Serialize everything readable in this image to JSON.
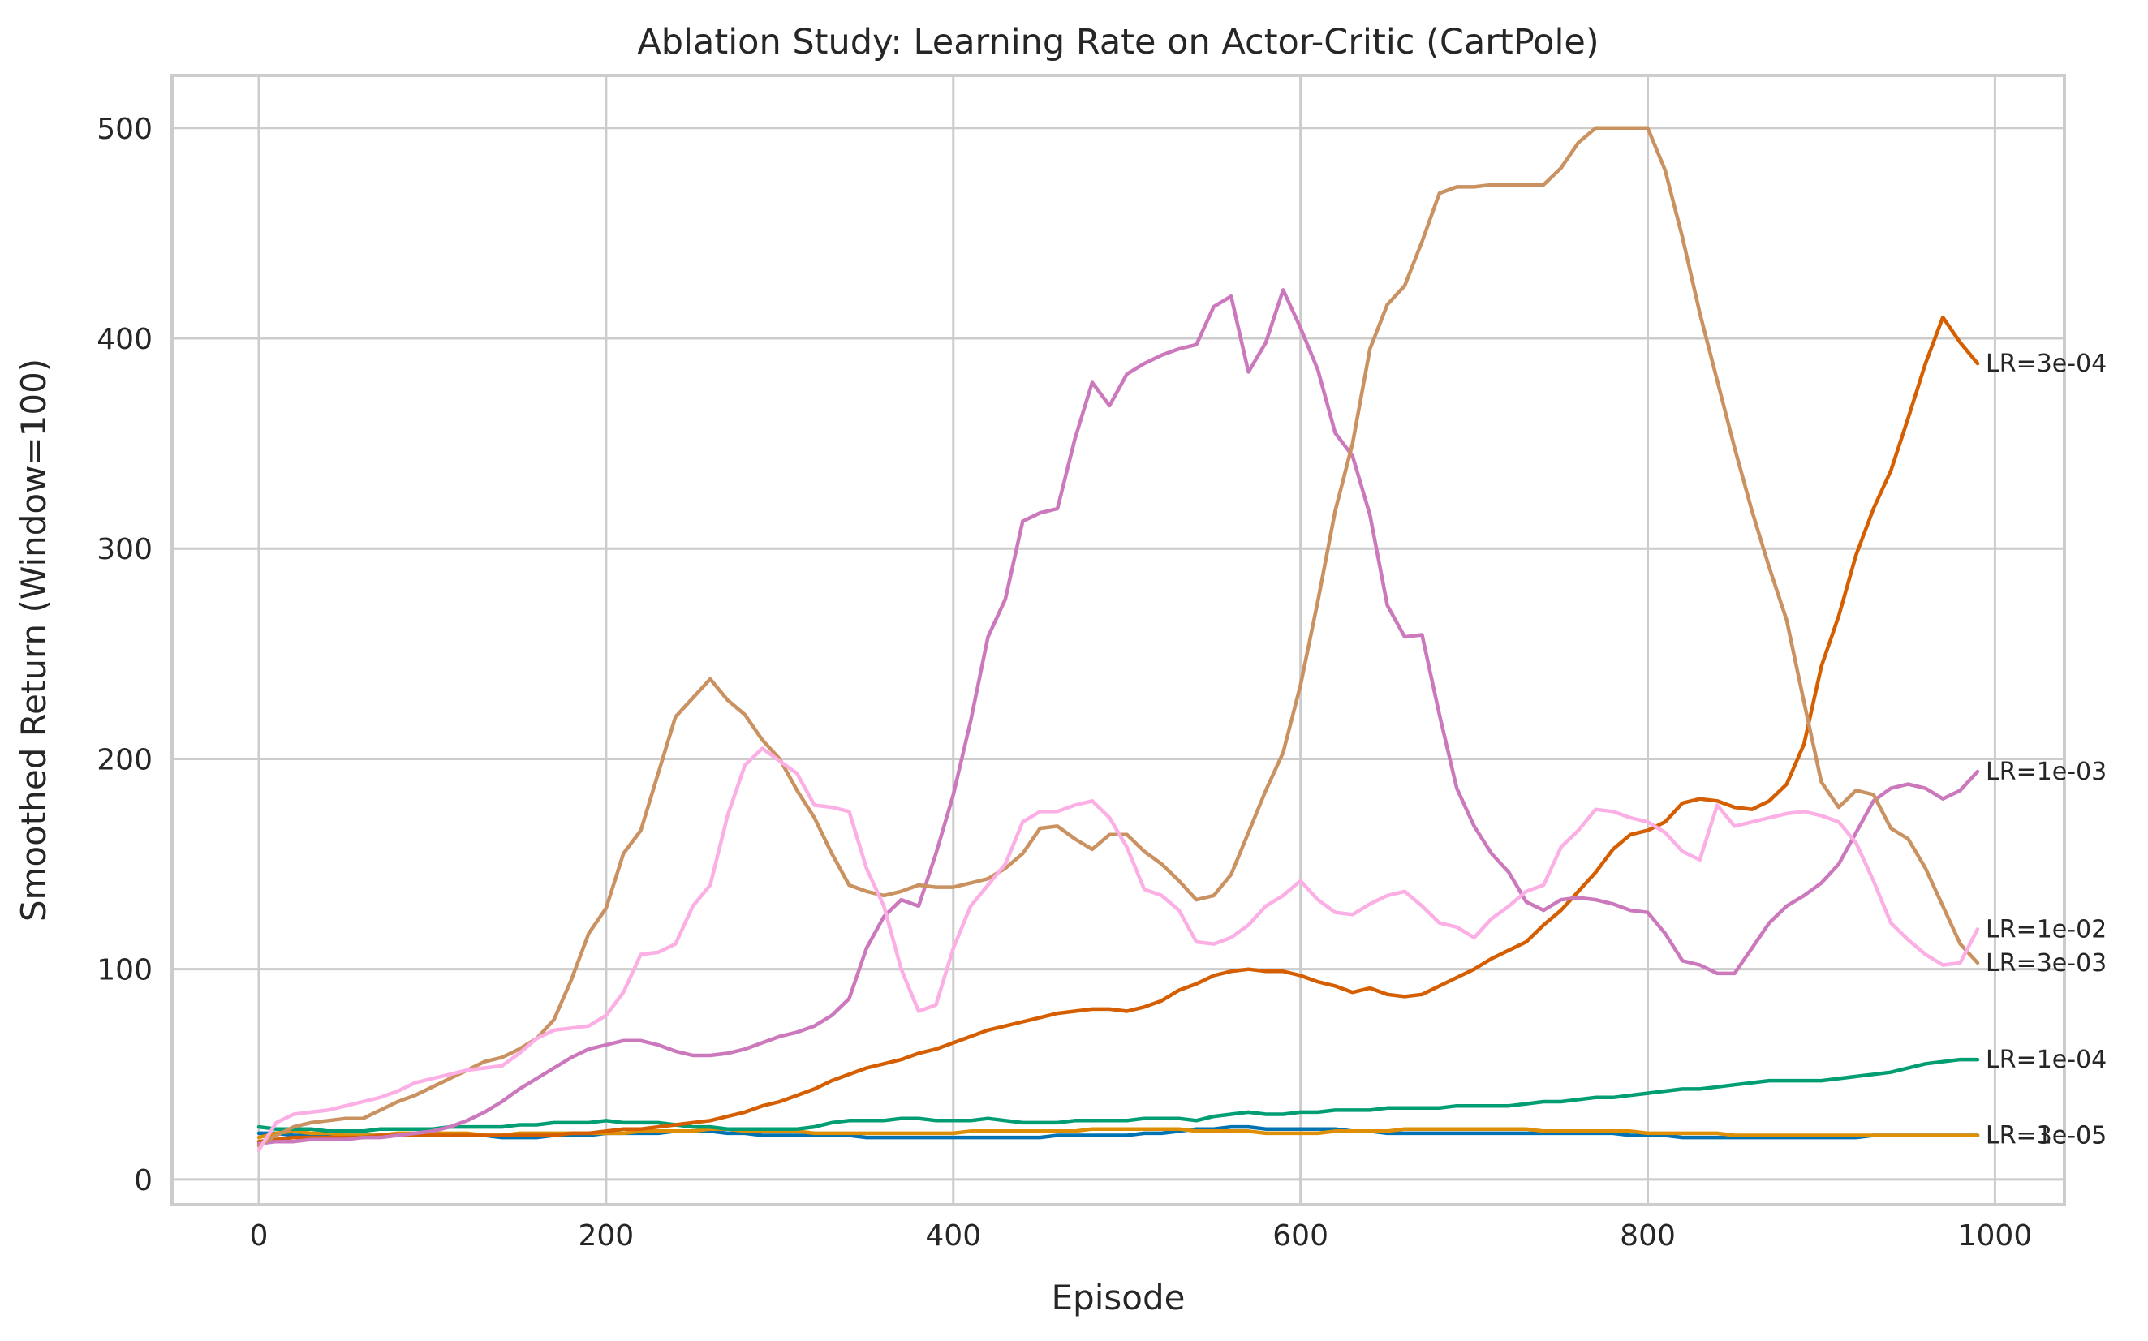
{
  "chart_data": {
    "type": "line",
    "title": "Ablation Study: Learning Rate on Actor-Critic (CartPole)",
    "xlabel": "Episode",
    "ylabel": "Smoothed Return (Window=100)",
    "xlim": [
      -50,
      1040
    ],
    "ylim": [
      -12,
      525
    ],
    "xticks": [
      0,
      200,
      400,
      600,
      800,
      1000
    ],
    "yticks": [
      0,
      100,
      200,
      300,
      400,
      500
    ],
    "grid": true,
    "legend": "labels at line ends (right)",
    "x": [
      0,
      10,
      20,
      30,
      40,
      50,
      60,
      70,
      80,
      90,
      100,
      110,
      120,
      130,
      140,
      150,
      160,
      170,
      180,
      190,
      200,
      210,
      220,
      230,
      240,
      250,
      260,
      270,
      280,
      290,
      300,
      310,
      320,
      330,
      340,
      350,
      360,
      370,
      380,
      390,
      400,
      410,
      420,
      430,
      440,
      450,
      460,
      470,
      480,
      490,
      500,
      510,
      520,
      530,
      540,
      550,
      560,
      570,
      580,
      590,
      600,
      610,
      620,
      630,
      640,
      650,
      660,
      670,
      680,
      690,
      700,
      710,
      720,
      730,
      740,
      750,
      760,
      770,
      780,
      790,
      800,
      810,
      820,
      830,
      840,
      850,
      860,
      870,
      880,
      890,
      900,
      910,
      920,
      930,
      940,
      950,
      960,
      970,
      980,
      990
    ],
    "series": [
      {
        "name": "LR=1e-05",
        "color": "#0173b2",
        "values": [
          22,
          22,
          21,
          21,
          21,
          21,
          21,
          21,
          21,
          21,
          21,
          21,
          21,
          21,
          20,
          20,
          20,
          21,
          21,
          21,
          22,
          22,
          22,
          22,
          23,
          23,
          23,
          22,
          22,
          21,
          21,
          21,
          21,
          21,
          21,
          20,
          20,
          20,
          20,
          20,
          20,
          20,
          20,
          20,
          20,
          20,
          21,
          21,
          21,
          21,
          21,
          22,
          22,
          23,
          24,
          24,
          25,
          25,
          24,
          24,
          24,
          24,
          24,
          23,
          23,
          22,
          22,
          22,
          22,
          22,
          22,
          22,
          22,
          22,
          22,
          22,
          22,
          22,
          22,
          21,
          21,
          21,
          20,
          20,
          20,
          20,
          20,
          20,
          20,
          20,
          20,
          20,
          20,
          21,
          21,
          21,
          21,
          21,
          21,
          21
        ]
      },
      {
        "name": "LR=3e-05",
        "color": "#de8f05",
        "values": [
          20,
          22,
          23,
          22,
          22,
          21,
          21,
          21,
          22,
          22,
          22,
          22,
          22,
          21,
          21,
          22,
          22,
          22,
          22,
          22,
          22,
          22,
          23,
          23,
          23,
          23,
          24,
          24,
          23,
          23,
          23,
          23,
          22,
          22,
          22,
          22,
          22,
          22,
          22,
          22,
          22,
          23,
          23,
          23,
          23,
          23,
          23,
          23,
          24,
          24,
          24,
          24,
          24,
          24,
          23,
          23,
          23,
          23,
          22,
          22,
          22,
          22,
          23,
          23,
          23,
          23,
          24,
          24,
          24,
          24,
          24,
          24,
          24,
          24,
          23,
          23,
          23,
          23,
          23,
          23,
          22,
          22,
          22,
          22,
          22,
          21,
          21,
          21,
          21,
          21,
          21,
          21,
          21,
          21,
          21,
          21,
          21,
          21,
          21,
          21
        ]
      },
      {
        "name": "LR=1e-04",
        "color": "#029e73",
        "values": [
          25,
          24,
          24,
          24,
          23,
          23,
          23,
          24,
          24,
          24,
          24,
          25,
          25,
          25,
          25,
          26,
          26,
          27,
          27,
          27,
          28,
          27,
          27,
          27,
          26,
          25,
          25,
          24,
          24,
          24,
          24,
          24,
          25,
          27,
          28,
          28,
          28,
          29,
          29,
          28,
          28,
          28,
          29,
          28,
          27,
          27,
          27,
          28,
          28,
          28,
          28,
          29,
          29,
          29,
          28,
          30,
          31,
          32,
          31,
          31,
          32,
          32,
          33,
          33,
          33,
          34,
          34,
          34,
          34,
          35,
          35,
          35,
          35,
          36,
          37,
          37,
          38,
          39,
          39,
          40,
          41,
          42,
          43,
          43,
          44,
          45,
          46,
          47,
          47,
          47,
          47,
          48,
          49,
          50,
          51,
          53,
          55,
          56,
          57,
          57
        ]
      },
      {
        "name": "LR=3e-04",
        "color": "#d55e00",
        "values": [
          18,
          19,
          20,
          20,
          20,
          20,
          20,
          21,
          21,
          21,
          21,
          21,
          21,
          21,
          21,
          21,
          21,
          21,
          22,
          22,
          23,
          24,
          24,
          25,
          26,
          27,
          28,
          30,
          32,
          35,
          37,
          40,
          43,
          47,
          50,
          53,
          55,
          57,
          60,
          62,
          65,
          68,
          71,
          73,
          75,
          77,
          79,
          80,
          81,
          81,
          80,
          82,
          85,
          90,
          93,
          97,
          99,
          100,
          99,
          99,
          97,
          94,
          92,
          89,
          91,
          88,
          87,
          88,
          92,
          96,
          100,
          105,
          109,
          113,
          121,
          128,
          137,
          146,
          157,
          164,
          166,
          170,
          179,
          181,
          180,
          177,
          176,
          180,
          188,
          207,
          244,
          268,
          297,
          319,
          337,
          362,
          388,
          410,
          398,
          388
        ]
      },
      {
        "name": "LR=1e-03",
        "color": "#cc78bc",
        "values": [
          17,
          18,
          18,
          19,
          19,
          19,
          20,
          20,
          21,
          22,
          23,
          25,
          28,
          32,
          37,
          43,
          48,
          53,
          58,
          62,
          64,
          66,
          66,
          64,
          61,
          59,
          59,
          60,
          62,
          65,
          68,
          70,
          73,
          78,
          86,
          110,
          125,
          133,
          130,
          155,
          183,
          218,
          258,
          276,
          313,
          317,
          319,
          352,
          379,
          368,
          383,
          388,
          392,
          395,
          397,
          415,
          420,
          384,
          398,
          423,
          405,
          385,
          355,
          344,
          316,
          273,
          258,
          259,
          221,
          186,
          168,
          155,
          146,
          132,
          128,
          133,
          134,
          133,
          131,
          128,
          127,
          117,
          104,
          102,
          98,
          98,
          110,
          122,
          130,
          135,
          141,
          150,
          165,
          180,
          186,
          188,
          186,
          181,
          185,
          194
        ]
      },
      {
        "name": "LR=3e-03",
        "color": "#ca9161",
        "values": [
          16,
          21,
          25,
          27,
          28,
          29,
          29,
          33,
          37,
          40,
          44,
          48,
          52,
          56,
          58,
          62,
          67,
          76,
          95,
          117,
          129,
          155,
          166,
          193,
          220,
          229,
          238,
          228,
          221,
          209,
          200,
          185,
          172,
          155,
          140,
          137,
          135,
          137,
          140,
          139,
          139,
          141,
          143,
          148,
          155,
          167,
          168,
          162,
          157,
          164,
          164,
          156,
          150,
          142,
          133,
          135,
          145,
          165,
          185,
          203,
          235,
          275,
          318,
          350,
          395,
          416,
          425,
          446,
          469,
          472,
          472,
          473,
          473,
          473,
          473,
          481,
          493,
          500,
          500,
          500,
          500,
          480,
          448,
          412,
          380,
          348,
          318,
          291,
          266,
          227,
          189,
          177,
          185,
          183,
          167,
          162,
          148,
          130,
          112,
          103
        ]
      },
      {
        "name": "LR=1e-02",
        "color": "#fbafe4",
        "values": [
          14,
          27,
          31,
          32,
          33,
          35,
          37,
          39,
          42,
          46,
          48,
          50,
          52,
          53,
          54,
          60,
          67,
          71,
          72,
          73,
          78,
          89,
          107,
          108,
          112,
          130,
          140,
          173,
          197,
          205,
          199,
          193,
          178,
          177,
          175,
          148,
          130,
          100,
          80,
          83,
          110,
          130,
          140,
          150,
          170,
          175,
          175,
          178,
          180,
          172,
          158,
          138,
          135,
          128,
          113,
          112,
          115,
          121,
          130,
          135,
          142,
          133,
          127,
          126,
          131,
          135,
          137,
          130,
          122,
          120,
          115,
          124,
          130,
          137,
          140,
          158,
          166,
          176,
          175,
          172,
          170,
          165,
          156,
          152,
          178,
          168,
          170,
          172,
          174,
          175,
          173,
          170,
          160,
          142,
          122,
          114,
          107,
          102,
          103,
          119
        ]
      }
    ]
  }
}
